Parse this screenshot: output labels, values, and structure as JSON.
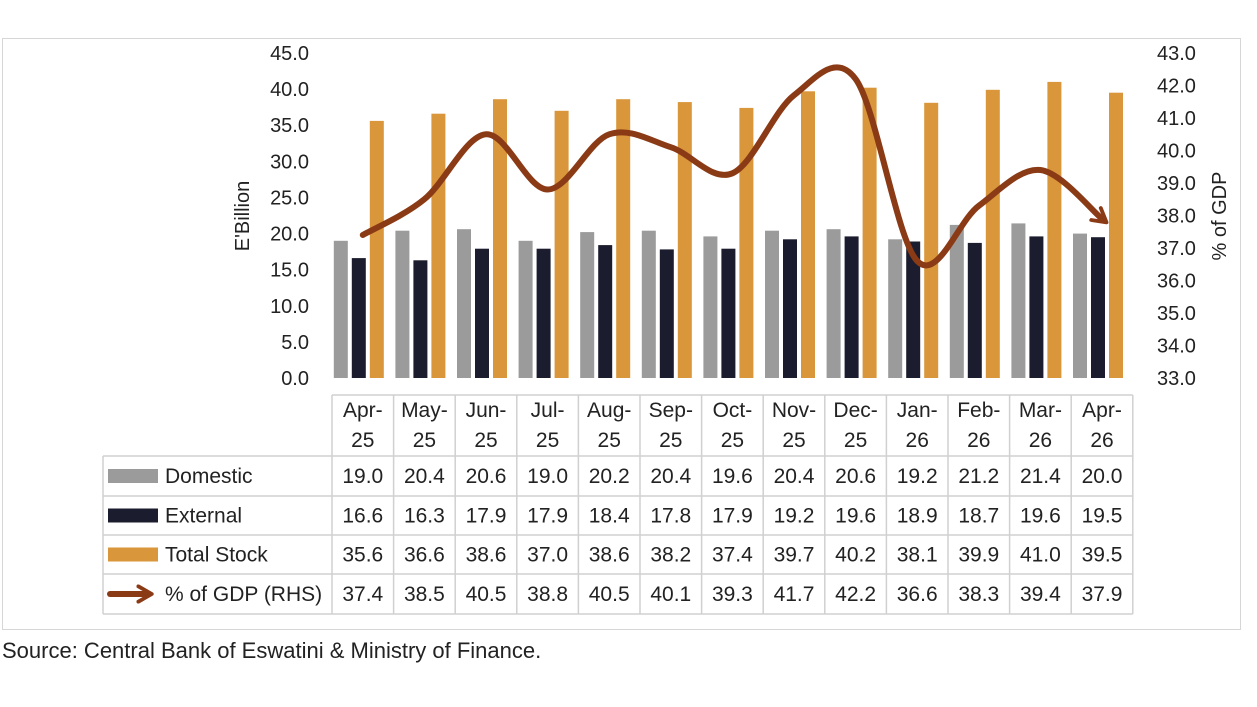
{
  "chart_data": {
    "type": "bar",
    "categories": [
      "Apr-25",
      "May-25",
      "Jun-25",
      "Jul-25",
      "Aug-25",
      "Sep-25",
      "Oct-25",
      "Nov-25",
      "Dec-25",
      "Jan-26",
      "Feb-26",
      "Mar-26",
      "Apr-26"
    ],
    "category_labels": [
      [
        "Apr-",
        "25"
      ],
      [
        "May-",
        "25"
      ],
      [
        "Jun-",
        "25"
      ],
      [
        "Jul-",
        "25"
      ],
      [
        "Aug-",
        "25"
      ],
      [
        "Sep-",
        "25"
      ],
      [
        "Oct-",
        "25"
      ],
      [
        "Nov-",
        "25"
      ],
      [
        "Dec-",
        "25"
      ],
      [
        "Jan-",
        "26"
      ],
      [
        "Feb-",
        "26"
      ],
      [
        "Mar-",
        "26"
      ],
      [
        "Apr-",
        "26"
      ]
    ],
    "series": [
      {
        "name": "Domestic",
        "type": "bar",
        "axis": "left",
        "color": "#9b9b9b",
        "values": [
          19.0,
          20.4,
          20.6,
          19.0,
          20.2,
          20.4,
          19.6,
          20.4,
          20.6,
          19.2,
          21.2,
          21.4,
          20.0
        ]
      },
      {
        "name": "External",
        "type": "bar",
        "axis": "left",
        "color": "#1b1d2e",
        "values": [
          16.6,
          16.3,
          17.9,
          17.9,
          18.4,
          17.8,
          17.9,
          19.2,
          19.6,
          18.9,
          18.7,
          19.6,
          19.5
        ]
      },
      {
        "name": "Total Stock",
        "type": "bar",
        "axis": "left",
        "color": "#d9963a",
        "values": [
          35.6,
          36.6,
          38.6,
          37.0,
          38.6,
          38.2,
          37.4,
          39.7,
          40.2,
          38.1,
          39.9,
          41.0,
          39.5
        ]
      },
      {
        "name": "% of GDP (RHS)",
        "type": "line",
        "axis": "right",
        "color": "#8b3a16",
        "values": [
          37.4,
          38.5,
          40.5,
          38.8,
          40.5,
          40.1,
          39.3,
          41.7,
          42.2,
          36.6,
          38.3,
          39.4,
          37.9
        ]
      }
    ],
    "ylabel": "E'Billion",
    "y2label": "% of GDP",
    "ylim": [
      0,
      45
    ],
    "y2lim": [
      33,
      43
    ],
    "yticks": [
      "0.0",
      "5.0",
      "10.0",
      "15.0",
      "20.0",
      "25.0",
      "30.0",
      "35.0",
      "40.0",
      "45.0"
    ],
    "y2ticks": [
      "33.0",
      "34.0",
      "35.0",
      "36.0",
      "37.0",
      "38.0",
      "39.0",
      "40.0",
      "41.0",
      "42.0",
      "43.0"
    ],
    "table_values": [
      [
        "19.0",
        "20.4",
        "20.6",
        "19.0",
        "20.2",
        "20.4",
        "19.6",
        "20.4",
        "20.6",
        "19.2",
        "21.2",
        "21.4",
        "20.0"
      ],
      [
        "16.6",
        "16.3",
        "17.9",
        "17.9",
        "18.4",
        "17.8",
        "17.9",
        "19.2",
        "19.6",
        "18.9",
        "18.7",
        "19.6",
        "19.5"
      ],
      [
        "35.6",
        "36.6",
        "38.6",
        "37.0",
        "38.6",
        "38.2",
        "37.4",
        "39.7",
        "40.2",
        "38.1",
        "39.9",
        "41.0",
        "39.5"
      ],
      [
        "37.4",
        "38.5",
        "40.5",
        "38.8",
        "40.5",
        "40.1",
        "39.3",
        "41.7",
        "42.2",
        "36.6",
        "38.3",
        "39.4",
        "37.9"
      ]
    ],
    "grid": false,
    "legend": "data-table"
  },
  "source": "Source: Central Bank of Eswatini & Ministry of Finance."
}
